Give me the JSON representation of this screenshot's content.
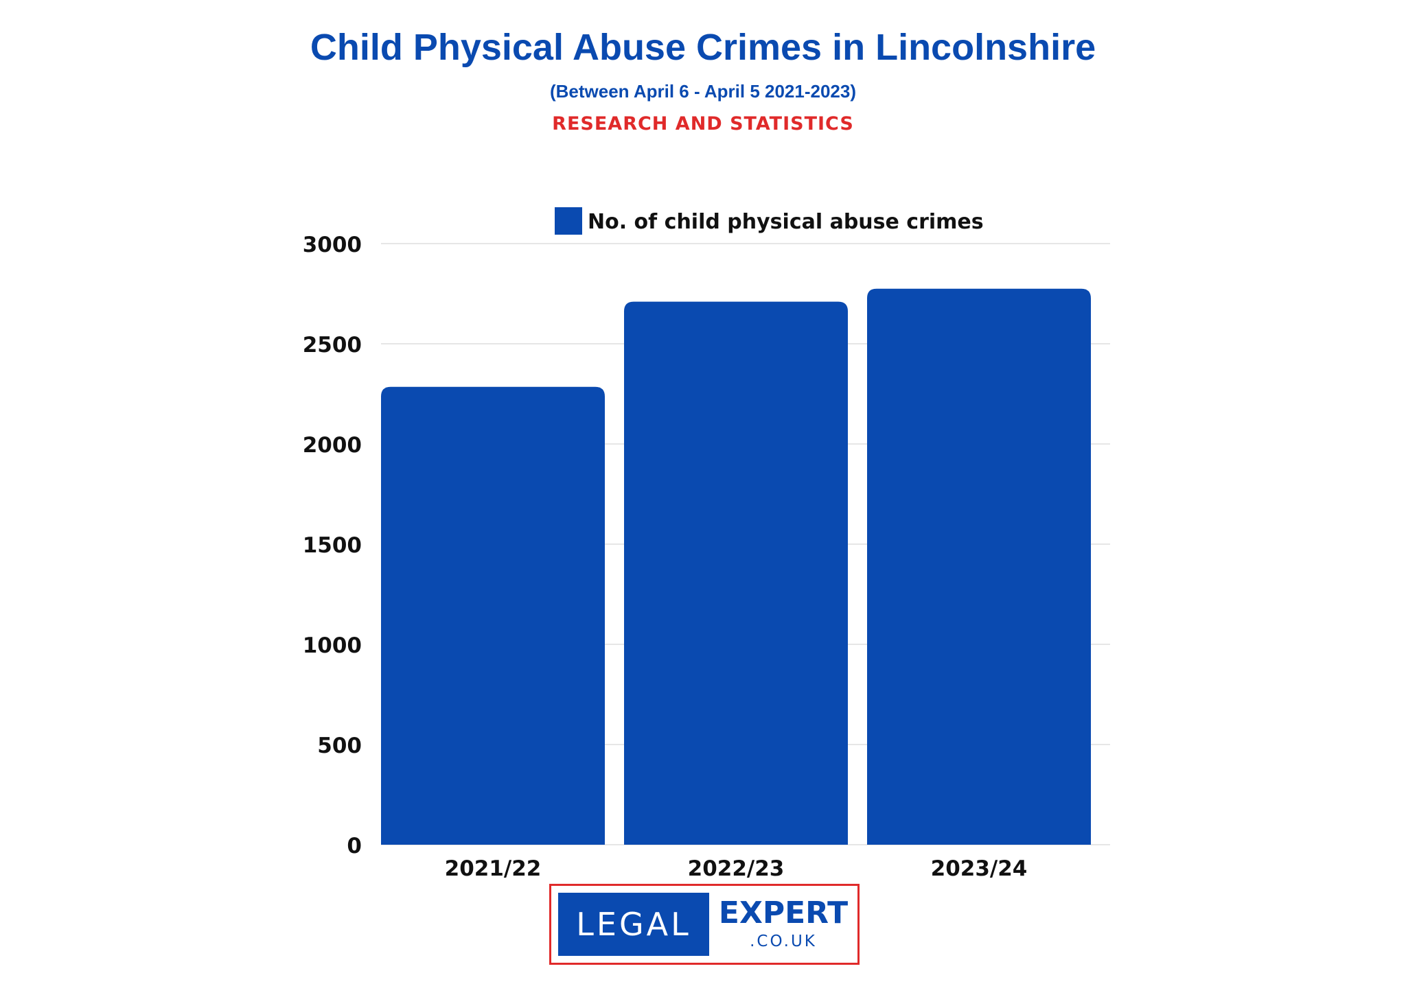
{
  "header": {
    "title": "Child Physical Abuse Crimes in Lincolnshire",
    "subtitle": "(Between April 6 - April 5 2021-2023)",
    "tagline": "RESEARCH AND STATISTICS"
  },
  "logo": {
    "left_text": "LEGAL",
    "right_text": "EXPERT",
    "domain_text": ".CO.UK"
  },
  "colors": {
    "bar": "#0a4ab0",
    "title": "#0a4ab0",
    "tagline": "#e02a2a",
    "grid": "#e6e6e6",
    "text": "#111111"
  },
  "chart_data": {
    "type": "bar",
    "categories": [
      "2021/22",
      "2022/23",
      "2023/24"
    ],
    "series": [
      {
        "name": "No. of child physical abuse crimes",
        "values": [
          2285,
          2710,
          2775
        ]
      }
    ],
    "yticks": [
      "0",
      "500",
      "1000",
      "1500",
      "2000",
      "2500",
      "3000"
    ],
    "ylim": [
      0,
      3000
    ],
    "grid": true,
    "legend": "top-center"
  }
}
